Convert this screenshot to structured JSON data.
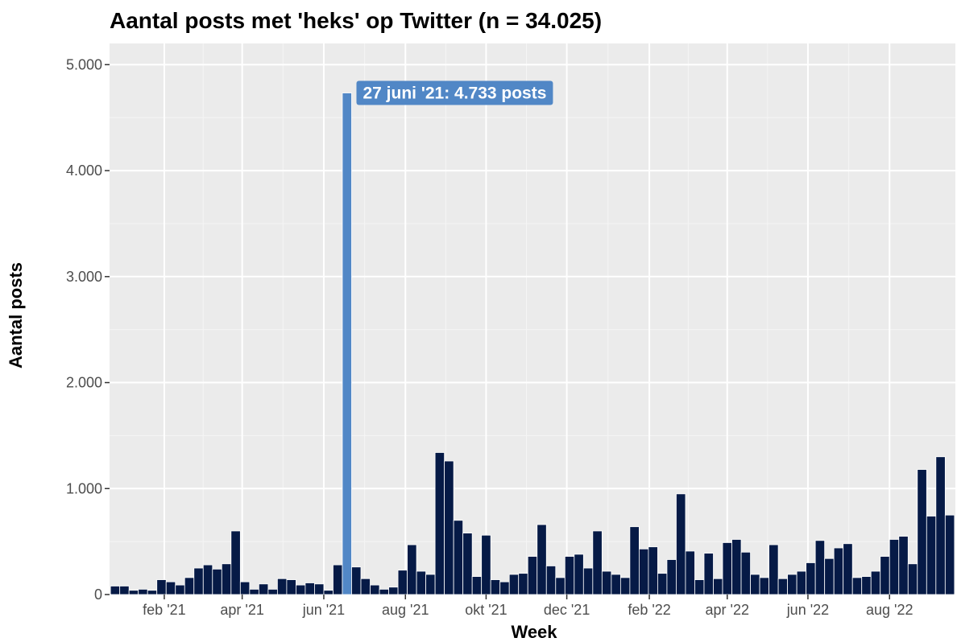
{
  "chart_data": {
    "type": "bar",
    "title": "Aantal posts met 'heks' op Twitter (n = 34.025)",
    "xlabel": "Week",
    "ylabel": "Aantal posts",
    "ylim": [
      0,
      5200
    ],
    "y_ticks": [
      {
        "value": 0,
        "label": "0"
      },
      {
        "value": 1000,
        "label": "1.000"
      },
      {
        "value": 2000,
        "label": "2.000"
      },
      {
        "value": 3000,
        "label": "3.000"
      },
      {
        "value": 4000,
        "label": "4.000"
      },
      {
        "value": 5000,
        "label": "5.000"
      }
    ],
    "x_ticks": [
      {
        "label": "feb '21",
        "week": 5.3
      },
      {
        "label": "apr '21",
        "week": 13.7
      },
      {
        "label": "jun '21",
        "week": 22.5
      },
      {
        "label": "aug '21",
        "week": 31.3
      },
      {
        "label": "okt '21",
        "week": 40.0
      },
      {
        "label": "dec '21",
        "week": 48.7
      },
      {
        "label": "feb '22",
        "week": 57.6
      },
      {
        "label": "apr '22",
        "week": 66.0
      },
      {
        "label": "jun '22",
        "week": 74.7
      },
      {
        "label": "aug '22",
        "week": 83.5
      }
    ],
    "values": [
      80,
      80,
      40,
      50,
      40,
      140,
      120,
      90,
      160,
      250,
      280,
      240,
      290,
      600,
      120,
      50,
      100,
      50,
      150,
      140,
      90,
      110,
      100,
      40,
      280,
      4733,
      260,
      150,
      90,
      50,
      70,
      230,
      470,
      220,
      190,
      1340,
      1260,
      700,
      580,
      170,
      560,
      140,
      120,
      190,
      200,
      360,
      660,
      270,
      160,
      360,
      380,
      250,
      600,
      220,
      190,
      160,
      640,
      430,
      450,
      200,
      330,
      950,
      410,
      140,
      390,
      150,
      490,
      520,
      400,
      190,
      160,
      470,
      150,
      190,
      220,
      300,
      510,
      340,
      440,
      480,
      160,
      170,
      220,
      360,
      520,
      550,
      290,
      1180,
      740,
      1300,
      750
    ],
    "highlight_index": 25,
    "colors": {
      "bar": "#061a46",
      "highlight": "#5187c6",
      "panel": "#ebebeb",
      "grid_major": "#ffffff",
      "grid_minor": "#f5f5f5"
    },
    "annotation": {
      "text": "27 juni '21: 4.733 posts",
      "week_index": 25,
      "value": 4733
    },
    "grid": true,
    "legend": "none"
  }
}
